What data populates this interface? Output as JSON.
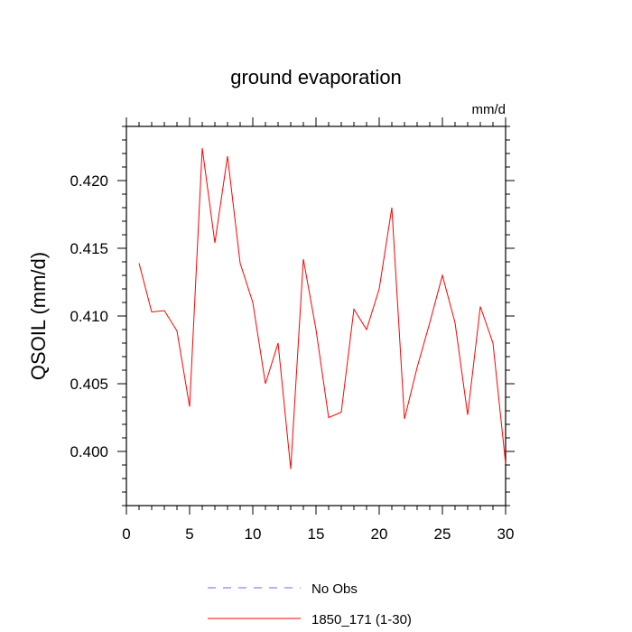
{
  "chart_data": {
    "type": "line",
    "title": "ground evaporation",
    "units": "mm/d",
    "ylabel": "QSOIL  (mm/d)",
    "xlim": [
      0,
      30
    ],
    "ylim": [
      0.396,
      0.424
    ],
    "x_ticks": [
      0,
      5,
      10,
      15,
      20,
      25,
      30
    ],
    "y_ticks": [
      0.4,
      0.405,
      0.41,
      0.415,
      0.42
    ],
    "y_tick_labels": [
      "0.400",
      "0.405",
      "0.410",
      "0.415",
      "0.420"
    ],
    "x": [
      1,
      2,
      3,
      4,
      5,
      6,
      7,
      8,
      9,
      10,
      11,
      12,
      13,
      14,
      15,
      16,
      17,
      18,
      19,
      20,
      21,
      22,
      23,
      24,
      25,
      26,
      27,
      28,
      29,
      30
    ],
    "series": [
      {
        "name": "1850_171 (1-30)",
        "color": "#ff0000",
        "values": [
          0.4139,
          0.4103,
          0.4104,
          0.4089,
          0.4033,
          0.4224,
          0.4154,
          0.4218,
          0.4139,
          0.411,
          0.405,
          0.408,
          0.3987,
          0.4142,
          0.409,
          0.4025,
          0.4029,
          0.4105,
          0.409,
          0.412,
          0.418,
          0.4024,
          0.4062,
          0.4095,
          0.413,
          0.4095,
          0.4027,
          0.4107,
          0.408,
          0.3991
        ]
      }
    ],
    "legend": [
      {
        "label": "No Obs",
        "color": "#6666ff",
        "style": "dashed"
      },
      {
        "label": "1850_171 (1-30)",
        "color": "#ff0000",
        "style": "solid"
      }
    ],
    "legend_position": "bottom",
    "grid": false
  }
}
